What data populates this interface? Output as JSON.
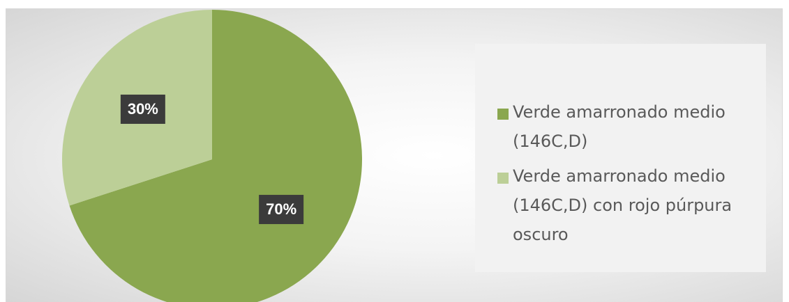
{
  "chart_data": {
    "type": "pie",
    "categories": [
      "Verde amarronado medio (146C,D)",
      "Verde amarronado medio (146C,D) con rojo púrpura oscuro"
    ],
    "values": [
      70,
      30
    ],
    "value_labels": [
      "70%",
      "30%"
    ],
    "colors": [
      "#8aa74f",
      "#bccf97"
    ],
    "legend": "right"
  }
}
